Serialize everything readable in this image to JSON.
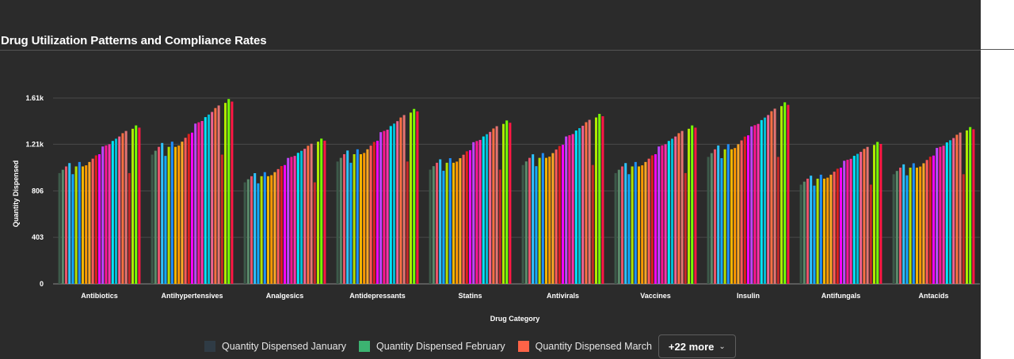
{
  "chart_data": {
    "type": "bar",
    "title": "Drug Utilization Patterns and Compliance Rates",
    "xlabel": "Drug Category",
    "ylabel": "Quantity Dispensed",
    "ylim": [
      0,
      1610
    ],
    "yticks": [
      0,
      403,
      806,
      1210,
      1610
    ],
    "ytick_labels": [
      "0",
      "403",
      "806",
      "1.21k",
      "1.61k"
    ],
    "grid": true,
    "legend_position": "bottom",
    "categories": [
      "Antibiotics",
      "Antihypertensives",
      "Analgesics",
      "Antidepressants",
      "Statins",
      "Antivirals",
      "Vaccines",
      "Insulin",
      "Antifungals",
      "Antacids"
    ],
    "base_values": [
      960,
      1120,
      880,
      1060,
      990,
      1030,
      960,
      1100,
      860,
      950
    ],
    "series_multipliers": [
      1.0,
      1.03,
      1.06,
      1.09,
      0.99,
      1.06,
      1.1,
      1.06,
      1.07,
      1.1,
      1.13,
      1.16,
      1.17,
      1.24,
      1.25,
      1.26,
      1.29,
      1.31,
      1.33,
      1.36,
      1.38,
      1.0,
      1.4,
      1.43,
      1.41
    ],
    "series": [
      {
        "name": "Quantity Dispensed January",
        "color": "#2f3b45"
      },
      {
        "name": "Quantity Dispensed February",
        "color": "#3cb371"
      },
      {
        "name": "Quantity Dispensed March",
        "color": "#ff6347"
      }
    ],
    "series_colors": [
      "#3d5a4a",
      "#5a8a6a",
      "#e8546a",
      "#2ec4ff",
      "#12a8ff",
      "#b0e000",
      "#1e90ff",
      "#f4b400",
      "#ff9800",
      "#ffa726",
      "#ff5a5a",
      "#e0201e",
      "#ff00ff",
      "#c044ff",
      "#ff1493",
      "#ff33aa",
      "#00e5ff",
      "#00bcd4",
      "#f06292",
      "#ff7043",
      "#e57373",
      "#c62828",
      "#aeea00",
      "#76ff03",
      "#ff1744"
    ]
  },
  "legend": {
    "more_label": "+22 more"
  }
}
